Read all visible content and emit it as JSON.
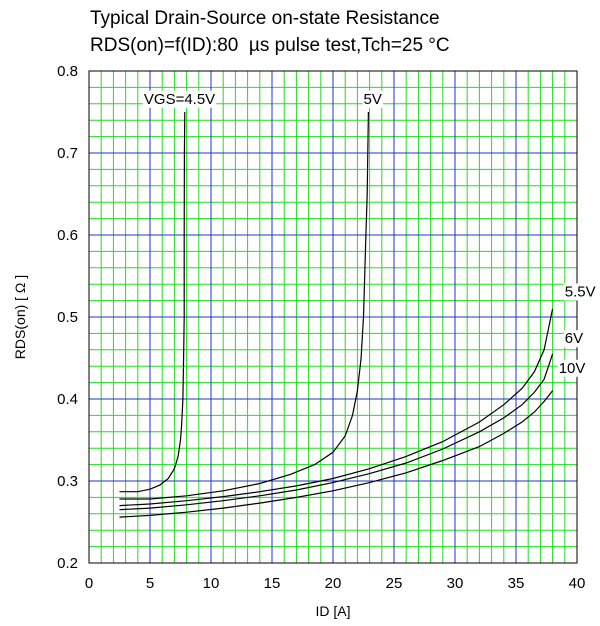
{
  "chart_data": {
    "type": "line",
    "title": "Typical Drain-Source on-state Resistance",
    "subtitle": "RDS(on)=f(ID):80  µs pulse test,Tch=25 °C",
    "xlabel": "ID [A]",
    "ylabel": "RDS(on) [ Ω ]",
    "xlim": [
      0,
      40
    ],
    "ylim": [
      0.2,
      0.8
    ],
    "x_ticks": [
      "0",
      "5",
      "10",
      "15",
      "20",
      "25",
      "30",
      "35",
      "40"
    ],
    "y_ticks": [
      "0.2",
      "0.3",
      "0.4",
      "0.5",
      "0.6",
      "0.7",
      "0.8"
    ],
    "grid": true,
    "colors": {
      "minor_grid": "#22dd22",
      "major_grid": "#2233cc",
      "curve": "#000000",
      "axes": "#000000"
    },
    "series": [
      {
        "name": "VGS=4.5V",
        "label_at": [
          4.5,
          0.76
        ],
        "x": [
          2.5,
          4.0,
          5.0,
          5.8,
          6.5,
          7.0,
          7.3,
          7.5,
          7.6,
          7.7,
          7.75,
          7.8,
          7.8,
          7.82,
          7.85
        ],
        "y": [
          0.287,
          0.287,
          0.29,
          0.295,
          0.303,
          0.315,
          0.33,
          0.35,
          0.37,
          0.4,
          0.45,
          0.5,
          0.6,
          0.7,
          0.75
        ]
      },
      {
        "name": "5V",
        "label_at": [
          22.5,
          0.76
        ],
        "x": [
          2.5,
          5.0,
          8.0,
          11.0,
          14.0,
          16.5,
          18.5,
          20.0,
          21.0,
          21.6,
          22.0,
          22.3,
          22.5,
          22.6,
          22.7,
          22.8,
          22.85,
          22.9
        ],
        "y": [
          0.278,
          0.278,
          0.282,
          0.288,
          0.297,
          0.308,
          0.32,
          0.335,
          0.355,
          0.38,
          0.41,
          0.45,
          0.5,
          0.55,
          0.6,
          0.65,
          0.7,
          0.75
        ]
      },
      {
        "name": "5.5V",
        "label_at": [
          39.0,
          0.525
        ],
        "x": [
          2.5,
          5.0,
          8.0,
          11.0,
          14.0,
          17.0,
          20.0,
          23.0,
          26.0,
          29.0,
          32.0,
          34.0,
          35.5,
          36.5,
          37.3,
          38.0
        ],
        "y": [
          0.27,
          0.272,
          0.276,
          0.281,
          0.287,
          0.294,
          0.303,
          0.315,
          0.33,
          0.348,
          0.372,
          0.393,
          0.413,
          0.433,
          0.46,
          0.51
        ]
      },
      {
        "name": "6V",
        "label_at": [
          39.0,
          0.468
        ],
        "x": [
          2.5,
          5.0,
          8.0,
          11.0,
          14.0,
          17.0,
          20.0,
          23.0,
          26.0,
          29.0,
          32.0,
          34.0,
          35.5,
          36.5,
          37.3,
          38.0
        ],
        "y": [
          0.265,
          0.267,
          0.271,
          0.276,
          0.282,
          0.289,
          0.298,
          0.309,
          0.322,
          0.339,
          0.36,
          0.377,
          0.393,
          0.408,
          0.424,
          0.455
        ]
      },
      {
        "name": "10V",
        "label_at": [
          38.5,
          0.432
        ],
        "x": [
          2.5,
          5.0,
          8.0,
          11.0,
          14.0,
          17.0,
          20.0,
          23.0,
          26.0,
          29.0,
          32.0,
          34.0,
          35.5,
          36.5,
          37.3,
          38.0
        ],
        "y": [
          0.256,
          0.258,
          0.262,
          0.267,
          0.273,
          0.28,
          0.288,
          0.298,
          0.31,
          0.325,
          0.342,
          0.358,
          0.372,
          0.384,
          0.397,
          0.41
        ]
      }
    ]
  }
}
